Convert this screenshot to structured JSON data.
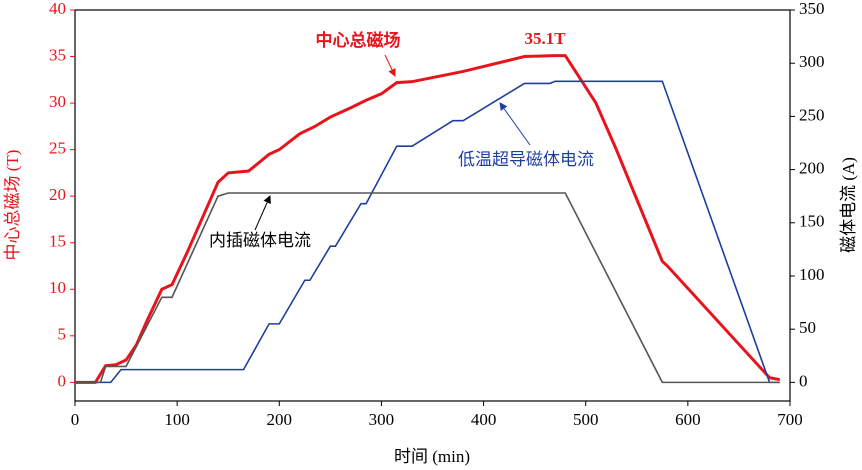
{
  "chart_data": {
    "type": "line",
    "x_label": "时间 (min)",
    "y_label": "中心总磁场 (T)",
    "y2_label": "磁体电流 (A)",
    "xlim": [
      0,
      700
    ],
    "xticks": [
      0,
      100,
      200,
      300,
      400,
      500,
      600,
      700
    ],
    "ylim": [
      -2,
      40
    ],
    "yticks": [
      0,
      5,
      10,
      15,
      20,
      25,
      30,
      35,
      40
    ],
    "y2lim": [
      -17.5,
      350
    ],
    "y2ticks": [
      0,
      50,
      100,
      150,
      200,
      250,
      300,
      350
    ],
    "annotations": [
      "35.1T"
    ],
    "series": [
      {
        "name": "中心总磁场",
        "color": "#e8141b",
        "axis": "y",
        "x": [
          0,
          20,
          30,
          40,
          50,
          60,
          70,
          85,
          95,
          110,
          140,
          150,
          170,
          190,
          200,
          220,
          235,
          250,
          270,
          285,
          300,
          315,
          330,
          380,
          440,
          470,
          480,
          510,
          530,
          560,
          575,
          580,
          680,
          690
        ],
        "values": [
          0,
          0,
          1.8,
          1.9,
          2.4,
          4,
          6.5,
          10,
          10.5,
          14,
          21.5,
          22.5,
          22.7,
          24.5,
          25,
          26.7,
          27.5,
          28.5,
          29.5,
          30.3,
          31,
          32.2,
          32.3,
          33.4,
          35,
          35.1,
          35.1,
          30,
          25,
          17,
          13,
          12.5,
          0.5,
          0.3
        ]
      },
      {
        "name": "低温超导磁体电流",
        "color": "#1f3f9f",
        "axis": "y2",
        "x": [
          0,
          35,
          45,
          165,
          190,
          200,
          225,
          230,
          250,
          255,
          280,
          285,
          315,
          330,
          370,
          380,
          440,
          465,
          470,
          575,
          680,
          690
        ],
        "values": [
          0,
          0,
          12,
          12,
          55,
          55,
          96,
          96,
          128,
          128,
          168,
          168,
          222,
          222,
          246,
          246,
          281,
          281,
          283,
          283,
          0,
          0
        ]
      },
      {
        "name": "内插磁体电流",
        "color": "#555555",
        "axis": "y2",
        "x": [
          0,
          25,
          30,
          50,
          85,
          95,
          140,
          150,
          480,
          575,
          690
        ],
        "values": [
          0,
          0,
          15,
          15,
          80,
          80,
          175,
          178,
          178,
          0,
          0
        ]
      }
    ]
  }
}
